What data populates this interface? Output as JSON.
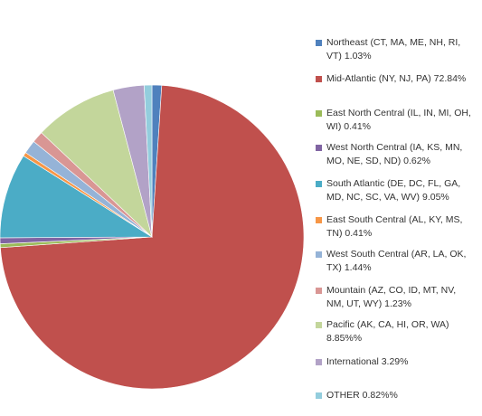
{
  "chart_data": {
    "type": "pie",
    "categories": [
      "Northeast (CT, MA, ME, NH, RI, VT) 1.03%",
      "Mid-Atlantic (NY, NJ, PA) 72.84%",
      "East North Central (IL, IN, MI, OH, WI) 0.41%",
      "West North Central (IA, KS, MN, MO, NE, SD, ND) 0.62%",
      "South Atlantic  (DE, DC, FL, GA, MD, NC, SC, VA, WV) 9.05%",
      "East South Central (AL, KY, MS, TN) 0.41%",
      "West South Central (AR, LA, OK, TX) 1.44%",
      "Mountain (AZ, CO, ID, MT, NV, NM, UT, WY) 1.23%",
      "Pacific (AK, CA, HI, OR, WA) 8.85%%",
      "International 3.29%",
      "OTHER 0.82%%"
    ],
    "values": [
      1.03,
      72.84,
      0.41,
      0.62,
      9.05,
      0.41,
      1.44,
      1.23,
      8.85,
      3.29,
      0.82
    ],
    "colors": [
      "#4f81bd",
      "#c0504d",
      "#9bbb59",
      "#8064a2",
      "#4bacc6",
      "#f79646",
      "#95b3d7",
      "#d99694",
      "#c3d69b",
      "#b2a2c7",
      "#93cddd"
    ],
    "legend": "right"
  }
}
